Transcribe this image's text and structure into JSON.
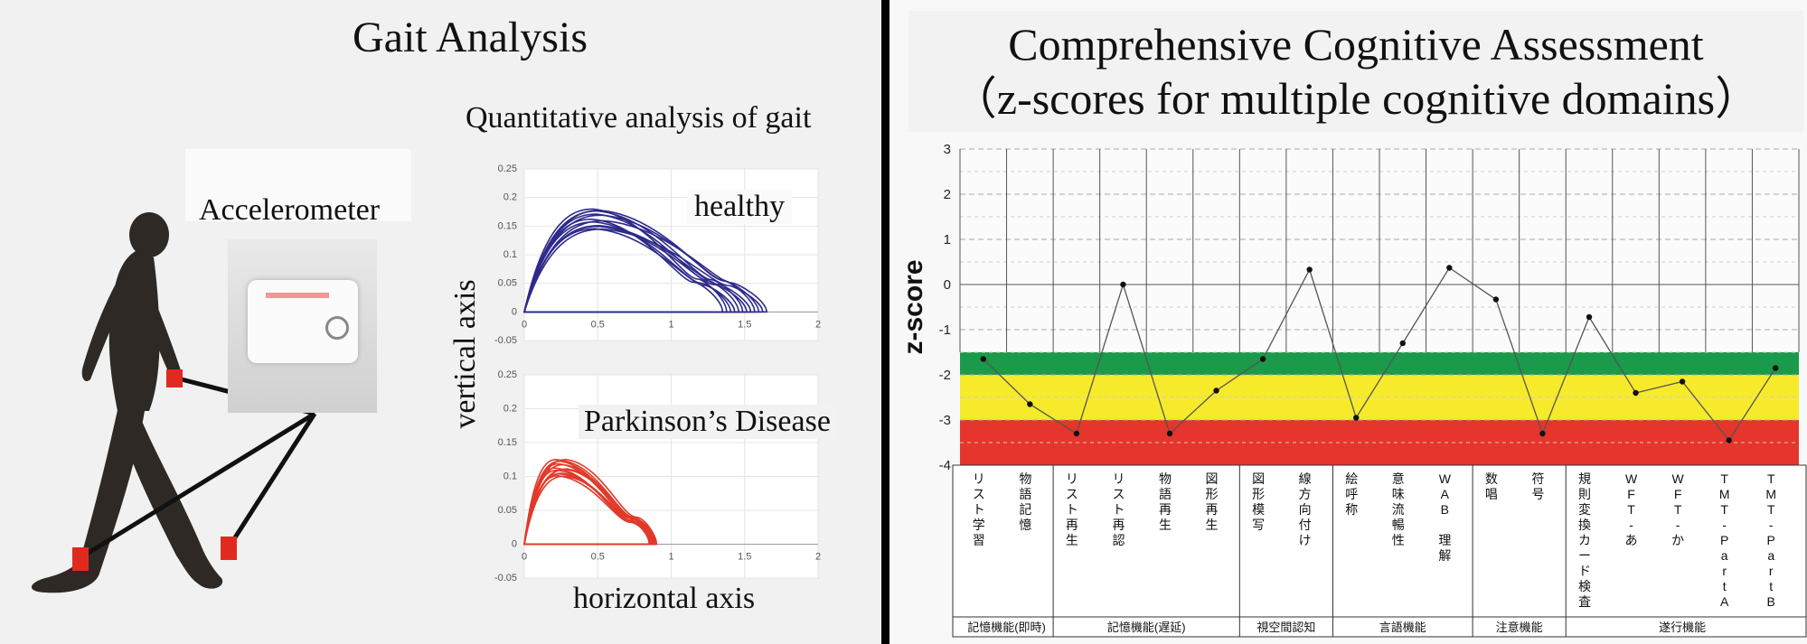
{
  "left": {
    "title": "Gait Analysis",
    "subtitle": "Quantitative analysis of gait",
    "accelerometer_label": "Accelerometer",
    "healthy_label": "healthy",
    "pd_label": "Parkinson’s Disease",
    "yaxis_label": "vertical axis",
    "xaxis_label": "horizontal axis"
  },
  "right": {
    "title_line1": "Comprehensive Cognitive Assessment",
    "title_line2": "（z-scores for multiple cognitive domains）",
    "ylabel": "z-score"
  },
  "colors": {
    "healthy": "#2e2a8a",
    "pd": "#e03a2a",
    "band_green": "#1a9a4a",
    "band_yellow": "#f7ea2a",
    "band_red": "#e5352c",
    "silhouette": "#2e2924",
    "sensor": "#e02a20"
  },
  "chart_data": [
    {
      "type": "line",
      "name": "healthy",
      "xlim": [
        0,
        2
      ],
      "ylim": [
        -0.05,
        0.25
      ],
      "xticks": [
        "0",
        "0.5",
        "1",
        "1.5",
        "2"
      ],
      "yticks": [
        "-0.05",
        "0",
        "0.05",
        "0.1",
        "0.15",
        "0.2",
        "0.25"
      ],
      "peak": {
        "x": 0.5,
        "y": 0.18
      },
      "x_end_range": [
        1.35,
        1.65
      ],
      "trace_count": 12
    },
    {
      "type": "line",
      "name": "Parkinson’s Disease",
      "xlim": [
        0,
        2
      ],
      "ylim": [
        -0.05,
        0.25
      ],
      "xticks": [
        "0",
        "0.5",
        "1",
        "1.5",
        "2"
      ],
      "yticks": [
        "-0.05",
        "0",
        "0.05",
        "0.1",
        "0.15",
        "0.2",
        "0.25"
      ],
      "peak": {
        "x": 0.25,
        "y": 0.125
      },
      "x_end_range": [
        0.85,
        0.9
      ],
      "trace_count": 14
    },
    {
      "type": "line",
      "ylabel": "z-score",
      "ylim": [
        -4,
        3
      ],
      "yticks": [
        "3",
        "2",
        "1",
        "0",
        "-1",
        "-2",
        "-3",
        "-4"
      ],
      "bands": [
        {
          "from": -1.5,
          "to": -2,
          "color": "green"
        },
        {
          "from": -2,
          "to": -3,
          "color": "yellow"
        },
        {
          "from": -3,
          "to": -4,
          "color": "red"
        }
      ],
      "categories": [
        "リスト学習",
        "物語記憶",
        "リスト再生",
        "リスト再認",
        "物語再生",
        "図形再生",
        "図形模写",
        "線方向付け",
        "絵呼称",
        "意味流暢性",
        "WAB 理解",
        "数唱",
        "符号",
        "規則変換カード検査",
        "WFT-あ",
        "WFT-か",
        "TMT-PartA",
        "TMT-PartB"
      ],
      "values": [
        -1.65,
        -2.65,
        -3.3,
        0.0,
        -3.3,
        -2.35,
        -1.65,
        0.33,
        -2.95,
        -1.3,
        0.37,
        -0.33,
        -3.3,
        -0.72,
        -2.4,
        -2.15,
        -3.45,
        -1.85
      ],
      "groups": [
        {
          "label": "記憶機能(即時)",
          "count": 2
        },
        {
          "label": "記憶機能(遅延)",
          "count": 4
        },
        {
          "label": "視空間認知",
          "count": 2
        },
        {
          "label": "言語機能",
          "count": 3
        },
        {
          "label": "注意機能",
          "count": 2
        },
        {
          "label": "遂行機能",
          "count": 5
        }
      ]
    }
  ]
}
